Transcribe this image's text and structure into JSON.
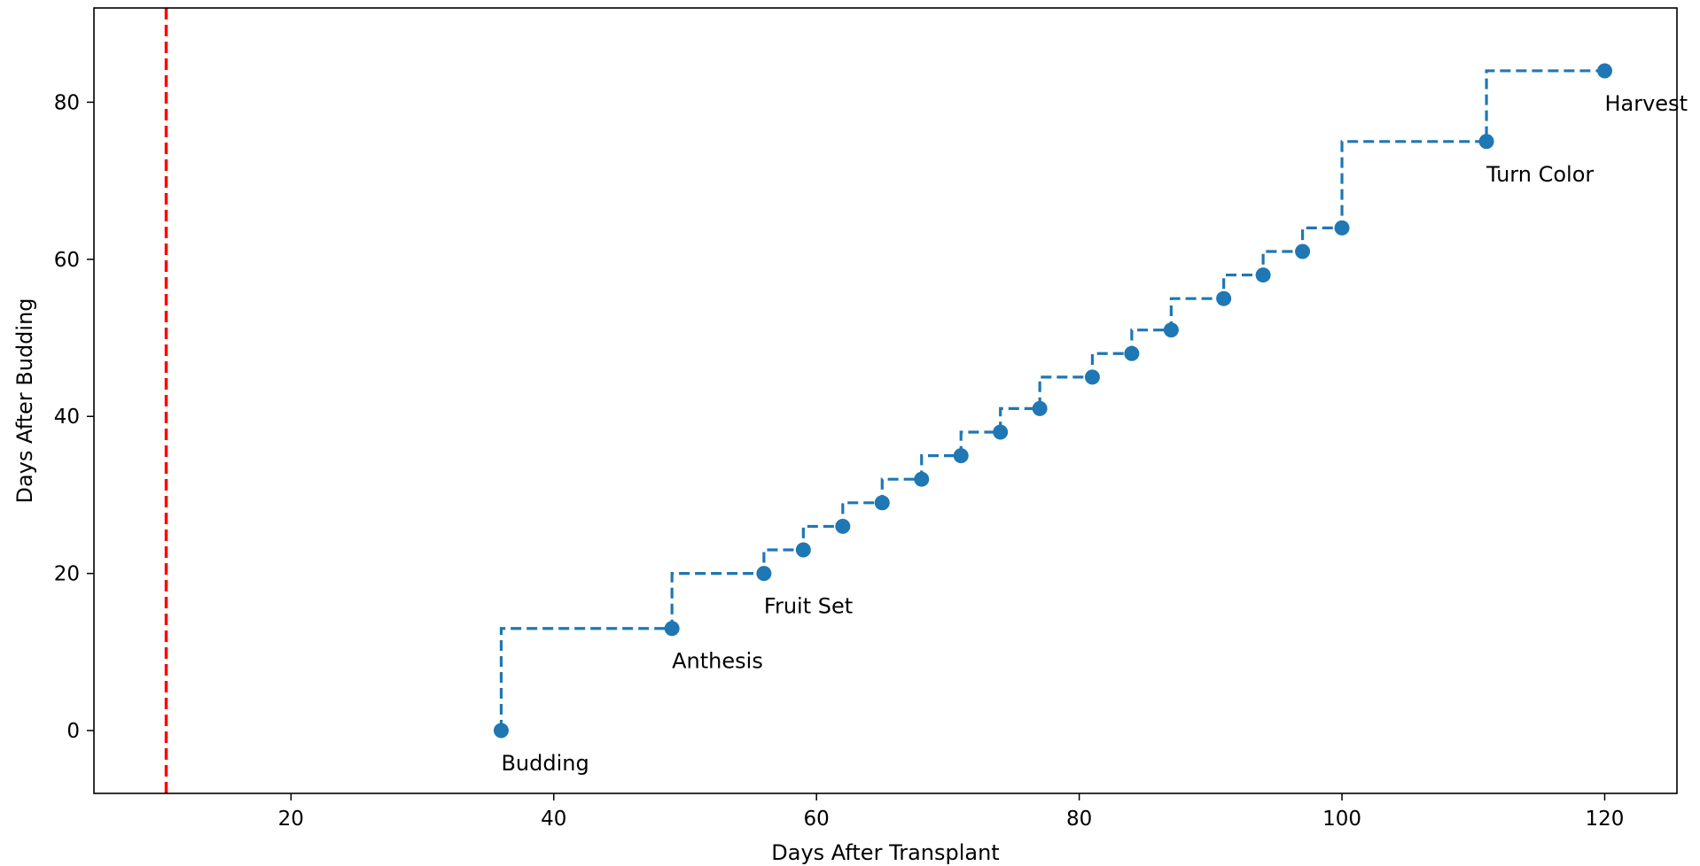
{
  "chart_data": {
    "type": "line",
    "title": "",
    "xlabel": "Days After Transplant",
    "ylabel": "Days After Budding",
    "xlim": [
      5,
      125.5
    ],
    "ylim": [
      -8,
      92
    ],
    "x_ticks": [
      20,
      40,
      60,
      80,
      100,
      120
    ],
    "y_ticks": [
      0,
      20,
      40,
      60,
      80
    ],
    "grid": false,
    "series": [
      {
        "style": "steps-post dashed with circle markers",
        "color": "#1f77b4",
        "x": [
          36,
          49,
          56,
          59,
          62,
          65,
          68,
          71,
          74,
          77,
          81,
          84,
          87,
          91,
          94,
          97,
          100,
          111,
          120
        ],
        "y": [
          0,
          13,
          20,
          23,
          26,
          29,
          32,
          35,
          38,
          41,
          45,
          48,
          51,
          55,
          58,
          61,
          64,
          75,
          84
        ]
      }
    ],
    "annotations": [
      {
        "text": "Budding",
        "x": 36,
        "y": 0
      },
      {
        "text": "Anthesis",
        "x": 49,
        "y": 13
      },
      {
        "text": "Fruit Set",
        "x": 56,
        "y": 20
      },
      {
        "text": "Turn Color",
        "x": 111,
        "y": 75
      },
      {
        "text": "Harvest",
        "x": 120,
        "y": 84
      }
    ],
    "reference_lines": [
      {
        "orientation": "vertical",
        "x": 10.5,
        "color": "#ff0000",
        "style": "dashed"
      }
    ]
  }
}
